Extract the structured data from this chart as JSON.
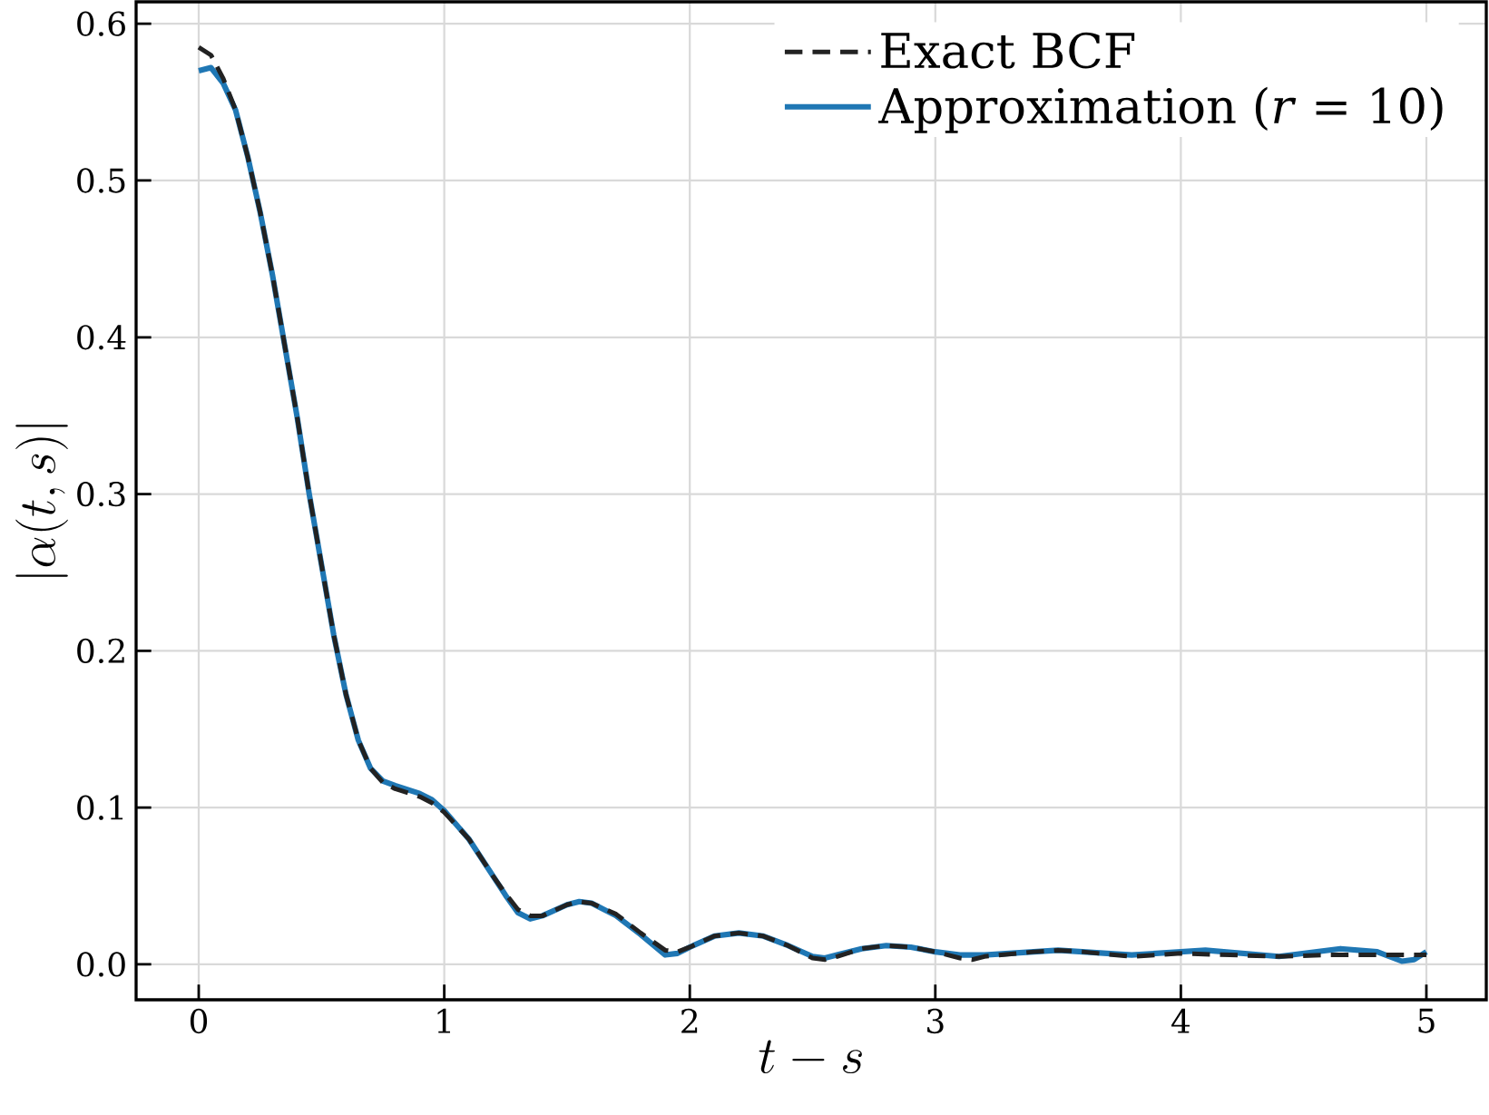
{
  "chart_data": {
    "type": "line",
    "xlabel": "t-s",
    "ylabel": "|\\alpha(t,s)|",
    "xlim": [
      -0.255,
      5.244
    ],
    "ylim": [
      -0.0226,
      0.614
    ],
    "xticks": [
      0,
      1,
      2,
      3,
      4,
      5
    ],
    "yticks": [
      {
        "value": 0,
        "label": "0.0"
      },
      0.1,
      0.2,
      0.3,
      0.4,
      0.5,
      0.6
    ],
    "grid": true,
    "legend": "top right",
    "series": [
      {
        "name": "Exact BCF",
        "color": "#222222",
        "line_style": "dashed",
        "x": [
          0,
          0.05,
          0.1,
          0.15,
          0.2,
          0.25,
          0.3,
          0.35,
          0.4,
          0.45,
          0.5,
          0.55,
          0.6,
          0.65,
          0.7,
          0.75,
          0.8,
          0.9,
          0.95,
          1.0,
          1.1,
          1.2,
          1.25,
          1.3,
          1.35,
          1.4,
          1.5,
          1.55,
          1.6,
          1.7,
          1.8,
          1.9,
          1.95,
          2.0,
          2.1,
          2.2,
          2.3,
          2.4,
          2.5,
          2.55,
          2.6,
          2.7,
          2.8,
          2.9,
          3.0,
          3.1,
          3.15,
          3.2,
          3.4,
          3.5,
          3.6,
          3.8,
          4.0,
          4.2,
          4.4,
          4.6,
          4.8,
          5.0
        ],
        "values": [
          0.585,
          0.58,
          0.565,
          0.545,
          0.515,
          0.48,
          0.44,
          0.395,
          0.35,
          0.3,
          0.255,
          0.21,
          0.172,
          0.143,
          0.125,
          0.116,
          0.112,
          0.107,
          0.103,
          0.097,
          0.08,
          0.056,
          0.045,
          0.035,
          0.031,
          0.031,
          0.038,
          0.04,
          0.039,
          0.032,
          0.02,
          0.009,
          0.008,
          0.011,
          0.018,
          0.02,
          0.018,
          0.012,
          0.004,
          0.003,
          0.005,
          0.01,
          0.012,
          0.011,
          0.008,
          0.004,
          0.003,
          0.005,
          0.008,
          0.009,
          0.008,
          0.005,
          0.007,
          0.006,
          0.005,
          0.006,
          0.006,
          0.006
        ]
      },
      {
        "name": "Approximation (*r* = 10)",
        "color": "#1f77b4",
        "line_style": "solid",
        "x": [
          0,
          0.05,
          0.1,
          0.15,
          0.2,
          0.25,
          0.3,
          0.35,
          0.4,
          0.45,
          0.5,
          0.55,
          0.6,
          0.65,
          0.7,
          0.75,
          0.8,
          0.9,
          0.95,
          1.0,
          1.1,
          1.2,
          1.25,
          1.3,
          1.35,
          1.4,
          1.5,
          1.55,
          1.6,
          1.7,
          1.8,
          1.9,
          1.95,
          2.0,
          2.1,
          2.2,
          2.3,
          2.4,
          2.5,
          2.55,
          2.6,
          2.7,
          2.8,
          2.9,
          3.0,
          3.1,
          3.2,
          3.5,
          3.8,
          4.1,
          4.4,
          4.65,
          4.8,
          4.9,
          4.95,
          5.0
        ],
        "values": [
          0.57,
          0.572,
          0.562,
          0.545,
          0.515,
          0.48,
          0.44,
          0.395,
          0.35,
          0.3,
          0.255,
          0.21,
          0.172,
          0.143,
          0.125,
          0.117,
          0.114,
          0.109,
          0.105,
          0.098,
          0.08,
          0.056,
          0.044,
          0.033,
          0.029,
          0.031,
          0.038,
          0.04,
          0.039,
          0.031,
          0.019,
          0.006,
          0.007,
          0.011,
          0.018,
          0.02,
          0.018,
          0.012,
          0.005,
          0.004,
          0.006,
          0.01,
          0.012,
          0.011,
          0.008,
          0.006,
          0.006,
          0.009,
          0.006,
          0.009,
          0.005,
          0.01,
          0.008,
          0.002,
          0.003,
          0.008
        ]
      }
    ]
  }
}
